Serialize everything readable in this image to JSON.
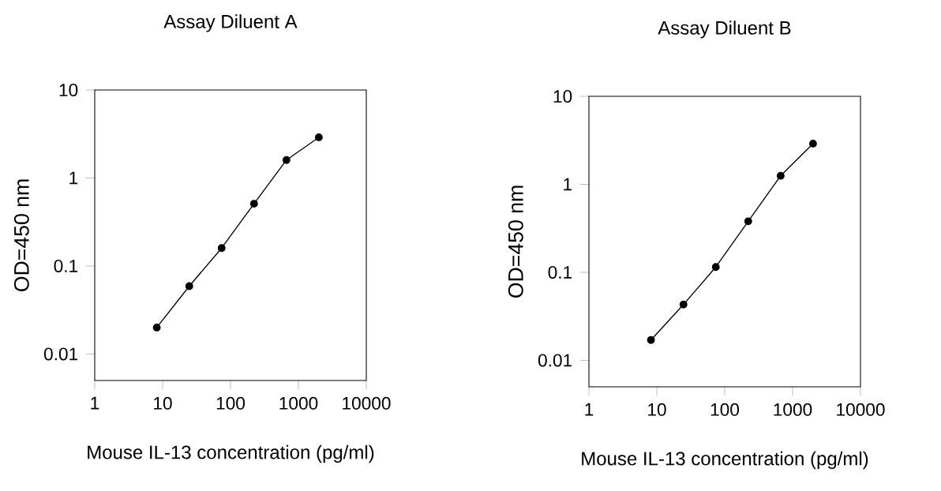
{
  "chart_data": [
    {
      "type": "line",
      "title": "Assay Diluent A",
      "xlabel": "Mouse IL-13 concentration (pg/ml)",
      "ylabel": "OD=450 nm",
      "log": "xy",
      "marker": "circle",
      "line_style": "solid",
      "xlim": [
        1,
        10000
      ],
      "ylim": [
        0.005,
        10
      ],
      "xticks": [
        1,
        10,
        100,
        1000,
        10000
      ],
      "yticks": [
        0.01,
        0.1,
        1,
        10
      ],
      "series": [
        {
          "color": "#000000",
          "x": [
            8.2,
            24.7,
            74,
            222,
            667,
            2000
          ],
          "values": [
            0.02,
            0.059,
            0.16,
            0.51,
            1.6,
            2.9
          ]
        }
      ]
    },
    {
      "type": "line",
      "title": "Assay Diluent B",
      "xlabel": "Mouse IL-13 concentration (pg/ml)",
      "ylabel": "OD=450 nm",
      "log": "xy",
      "marker": "circle",
      "line_style": "solid",
      "xlim": [
        1,
        10000
      ],
      "ylim": [
        0.005,
        10
      ],
      "xticks": [
        1,
        10,
        100,
        1000,
        10000
      ],
      "yticks": [
        0.01,
        0.1,
        1,
        10
      ],
      "series": [
        {
          "color": "#000000",
          "x": [
            8.2,
            24.7,
            74,
            222,
            667,
            2000
          ],
          "values": [
            0.017,
            0.043,
            0.115,
            0.38,
            1.25,
            2.9
          ]
        }
      ]
    }
  ]
}
